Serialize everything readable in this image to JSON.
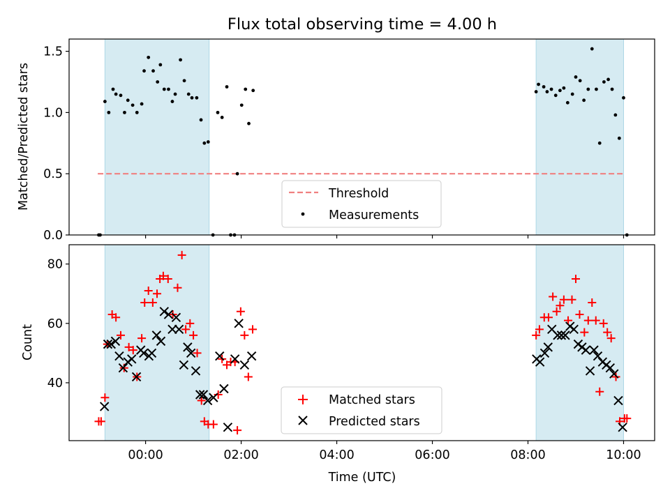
{
  "title": "Flux total observing time = 4.00 h",
  "chart_data": [
    {
      "type": "scatter",
      "panel": "top",
      "ylabel": "Matched/Predicted stars",
      "xlim": [
        -1.6,
        10.65
      ],
      "ylim": [
        0.0,
        1.6
      ],
      "yticks": [
        0.0,
        0.5,
        1.0,
        1.5
      ],
      "ytick_labels": [
        "0.0",
        "0.5",
        "1.0",
        "1.5"
      ],
      "observing_windows": [
        [
          -0.85,
          1.33
        ],
        [
          8.17,
          10.0
        ]
      ],
      "window_color": "#add8e6",
      "threshold": {
        "name": "Threshold",
        "y": 0.5,
        "x_range": [
          -1.0,
          10.0
        ],
        "color": "#f08080"
      },
      "series": [
        {
          "name": "Measurements",
          "color": "#000000",
          "points": [
            [
              -0.98,
              0.0
            ],
            [
              -0.95,
              0.0
            ],
            [
              -0.85,
              1.09
            ],
            [
              -0.77,
              1.0
            ],
            [
              -0.68,
              1.19
            ],
            [
              -0.62,
              1.15
            ],
            [
              -0.52,
              1.14
            ],
            [
              -0.44,
              1.0
            ],
            [
              -0.37,
              1.1
            ],
            [
              -0.27,
              1.06
            ],
            [
              -0.18,
              1.0
            ],
            [
              -0.08,
              1.07
            ],
            [
              -0.03,
              1.34
            ],
            [
              0.06,
              1.45
            ],
            [
              0.16,
              1.34
            ],
            [
              0.25,
              1.25
            ],
            [
              0.31,
              1.39
            ],
            [
              0.39,
              1.19
            ],
            [
              0.48,
              1.19
            ],
            [
              0.56,
              1.09
            ],
            [
              0.62,
              1.15
            ],
            [
              0.73,
              1.43
            ],
            [
              0.81,
              1.26
            ],
            [
              0.9,
              1.15
            ],
            [
              0.97,
              1.12
            ],
            [
              1.07,
              1.12
            ],
            [
              1.16,
              0.94
            ],
            [
              1.23,
              0.75
            ],
            [
              1.31,
              0.76
            ],
            [
              1.41,
              0.0
            ],
            [
              1.51,
              1.0
            ],
            [
              1.6,
              0.96
            ],
            [
              1.7,
              1.21
            ],
            [
              1.78,
              0.0
            ],
            [
              1.86,
              0.0
            ],
            [
              1.92,
              0.5
            ],
            [
              2.01,
              1.06
            ],
            [
              2.09,
              1.19
            ],
            [
              2.16,
              0.91
            ],
            [
              2.25,
              1.18
            ],
            [
              8.17,
              1.17
            ],
            [
              8.22,
              1.23
            ],
            [
              8.33,
              1.21
            ],
            [
              8.4,
              1.17
            ],
            [
              8.49,
              1.19
            ],
            [
              8.58,
              1.14
            ],
            [
              8.67,
              1.18
            ],
            [
              8.75,
              1.2
            ],
            [
              8.83,
              1.08
            ],
            [
              8.93,
              1.15
            ],
            [
              9.0,
              1.29
            ],
            [
              9.09,
              1.26
            ],
            [
              9.17,
              1.1
            ],
            [
              9.26,
              1.19
            ],
            [
              9.34,
              1.52
            ],
            [
              9.43,
              1.19
            ],
            [
              9.5,
              0.75
            ],
            [
              9.59,
              1.25
            ],
            [
              9.68,
              1.27
            ],
            [
              9.76,
              1.19
            ],
            [
              9.83,
              0.98
            ],
            [
              9.91,
              0.79
            ],
            [
              10.0,
              1.12
            ],
            [
              10.07,
              0.0
            ]
          ]
        }
      ],
      "legend": {
        "location": "lower center",
        "entries": [
          "Threshold",
          "Measurements"
        ]
      }
    },
    {
      "type": "scatter",
      "panel": "bottom",
      "xlabel": "Time (UTC)",
      "ylabel": "Count",
      "xlim": [
        -1.6,
        10.65
      ],
      "ylim": [
        20.5,
        86.5
      ],
      "yticks": [
        40,
        60,
        80
      ],
      "ytick_labels": [
        "40",
        "60",
        "80"
      ],
      "xticks": [
        0,
        2,
        4,
        6,
        8,
        10
      ],
      "xtick_labels": [
        "00:00",
        "02:00",
        "04:00",
        "06:00",
        "08:00",
        "10:00"
      ],
      "observing_windows": [
        [
          -0.85,
          1.33
        ],
        [
          8.17,
          10.0
        ]
      ],
      "window_color": "#add8e6",
      "series": [
        {
          "name": "Matched stars",
          "marker": "plus",
          "color": "#ff0000",
          "points": [
            [
              -0.98,
              27
            ],
            [
              -0.93,
              27
            ],
            [
              -0.85,
              35
            ],
            [
              -0.8,
              53
            ],
            [
              -0.7,
              63
            ],
            [
              -0.62,
              62
            ],
            [
              -0.52,
              56
            ],
            [
              -0.45,
              45
            ],
            [
              -0.35,
              52
            ],
            [
              -0.26,
              51
            ],
            [
              -0.18,
              42
            ],
            [
              -0.08,
              55
            ],
            [
              -0.02,
              67
            ],
            [
              0.06,
              71
            ],
            [
              0.15,
              67
            ],
            [
              0.24,
              70
            ],
            [
              0.3,
              75
            ],
            [
              0.37,
              76
            ],
            [
              0.47,
              75
            ],
            [
              0.57,
              63
            ],
            [
              0.67,
              72
            ],
            [
              0.76,
              83
            ],
            [
              0.84,
              58
            ],
            [
              0.93,
              60
            ],
            [
              1.0,
              56
            ],
            [
              1.08,
              50
            ],
            [
              1.17,
              34
            ],
            [
              1.23,
              27
            ],
            [
              1.31,
              26
            ],
            [
              1.42,
              26
            ],
            [
              1.52,
              36
            ],
            [
              1.6,
              48
            ],
            [
              1.7,
              46
            ],
            [
              1.78,
              47
            ],
            [
              1.87,
              47
            ],
            [
              1.92,
              24
            ],
            [
              1.99,
              64
            ],
            [
              2.07,
              56
            ],
            [
              2.15,
              42
            ],
            [
              2.24,
              58
            ],
            [
              8.17,
              56
            ],
            [
              8.24,
              58
            ],
            [
              8.34,
              62
            ],
            [
              8.43,
              62
            ],
            [
              8.52,
              69
            ],
            [
              8.6,
              64
            ],
            [
              8.67,
              66
            ],
            [
              8.75,
              68
            ],
            [
              8.84,
              61
            ],
            [
              8.92,
              68
            ],
            [
              9.0,
              75
            ],
            [
              9.08,
              63
            ],
            [
              9.18,
              57
            ],
            [
              9.26,
              61
            ],
            [
              9.34,
              67
            ],
            [
              9.42,
              61
            ],
            [
              9.5,
              37
            ],
            [
              9.58,
              60
            ],
            [
              9.66,
              57
            ],
            [
              9.74,
              55
            ],
            [
              9.84,
              42
            ],
            [
              9.92,
              27
            ],
            [
              10.02,
              28
            ],
            [
              10.07,
              28
            ]
          ]
        },
        {
          "name": "Predicted stars",
          "marker": "x",
          "color": "#000000",
          "points": [
            [
              -0.86,
              32
            ],
            [
              -0.79,
              53
            ],
            [
              -0.72,
              53
            ],
            [
              -0.63,
              54
            ],
            [
              -0.55,
              49
            ],
            [
              -0.47,
              45
            ],
            [
              -0.37,
              47
            ],
            [
              -0.29,
              48
            ],
            [
              -0.19,
              42
            ],
            [
              -0.1,
              51
            ],
            [
              -0.04,
              50
            ],
            [
              0.07,
              49
            ],
            [
              0.13,
              50
            ],
            [
              0.23,
              56
            ],
            [
              0.32,
              54
            ],
            [
              0.39,
              64
            ],
            [
              0.48,
              63
            ],
            [
              0.56,
              58
            ],
            [
              0.64,
              62
            ],
            [
              0.7,
              58
            ],
            [
              0.8,
              46
            ],
            [
              0.88,
              52
            ],
            [
              0.95,
              50
            ],
            [
              1.05,
              44
            ],
            [
              1.14,
              36
            ],
            [
              1.21,
              36
            ],
            [
              1.3,
              34
            ],
            [
              1.42,
              35
            ],
            [
              1.55,
              49
            ],
            [
              1.64,
              38
            ],
            [
              1.72,
              25
            ],
            [
              1.87,
              48
            ],
            [
              1.95,
              60
            ],
            [
              2.07,
              46
            ],
            [
              2.22,
              49
            ],
            [
              8.18,
              48
            ],
            [
              8.25,
              47
            ],
            [
              8.35,
              50
            ],
            [
              8.42,
              52
            ],
            [
              8.5,
              58
            ],
            [
              8.62,
              56
            ],
            [
              8.7,
              56
            ],
            [
              8.78,
              56
            ],
            [
              8.88,
              59
            ],
            [
              8.96,
              58
            ],
            [
              9.05,
              53
            ],
            [
              9.13,
              52
            ],
            [
              9.21,
              51
            ],
            [
              9.3,
              44
            ],
            [
              9.38,
              51
            ],
            [
              9.46,
              49
            ],
            [
              9.56,
              47
            ],
            [
              9.64,
              46
            ],
            [
              9.72,
              45
            ],
            [
              9.8,
              43
            ],
            [
              9.89,
              34
            ],
            [
              9.98,
              25
            ]
          ]
        }
      ],
      "legend": {
        "location": "lower center",
        "entries": [
          "Matched stars",
          "Predicted stars"
        ]
      }
    }
  ]
}
